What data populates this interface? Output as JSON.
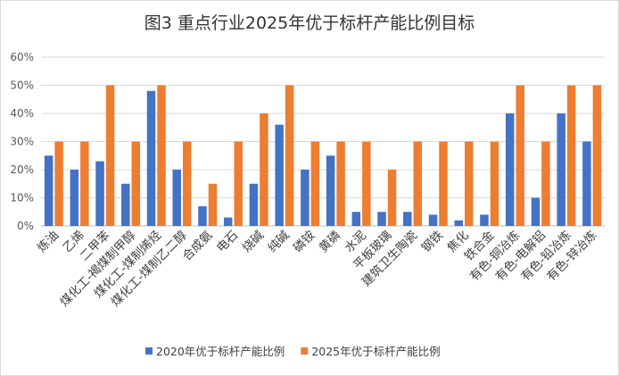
{
  "chart_data": {
    "type": "bar",
    "title": "图3  重点行业2025年优于标杆产能比例目标",
    "xlabel": "",
    "ylabel": "",
    "ylim": [
      0,
      60
    ],
    "y_ticks": [
      "0%",
      "10%",
      "20%",
      "30%",
      "40%",
      "50%",
      "60%"
    ],
    "grid": true,
    "legend_position": "bottom",
    "categories": [
      "炼油",
      "乙烯",
      "二甲苯",
      "煤化工-褐煤制甲醇",
      "煤化工-煤制烯烃",
      "煤化工-煤制乙二醇",
      "合成氨",
      "电石",
      "烧碱",
      "纯碱",
      "磷铵",
      "黄磷",
      "水泥",
      "平板玻璃",
      "建筑卫生陶瓷",
      "钢铁",
      "焦化",
      "铁合金",
      "有色-铜冶炼",
      "有色-电解铝",
      "有色-铅冶炼",
      "有色-锌冶炼"
    ],
    "series": [
      {
        "name": "2020年优于标杆产能比例",
        "color": "#4472C4",
        "values": [
          25,
          20,
          23,
          15,
          48,
          20,
          7,
          3,
          15,
          36,
          20,
          25,
          5,
          5,
          5,
          4,
          2,
          4,
          40,
          10,
          40,
          30
        ]
      },
      {
        "name": "2025年优于标杆产能比例",
        "color": "#ED7D31",
        "values": [
          30,
          30,
          50,
          30,
          50,
          30,
          15,
          30,
          40,
          50,
          30,
          30,
          30,
          20,
          30,
          30,
          30,
          30,
          50,
          30,
          50,
          50
        ]
      }
    ]
  }
}
